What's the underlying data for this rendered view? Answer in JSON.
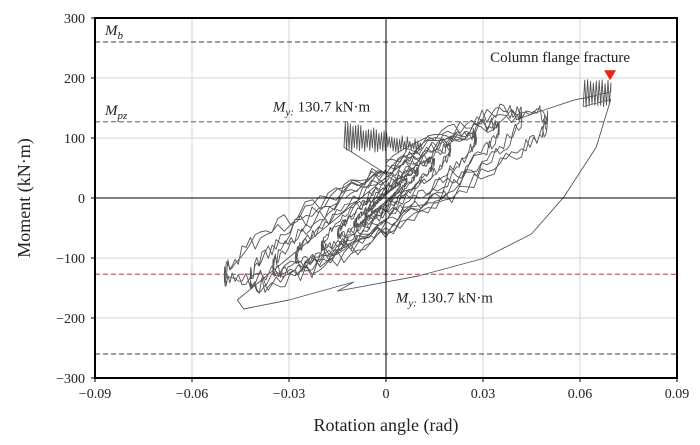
{
  "chart_data": {
    "type": "line",
    "xlabel": "Rotation angle (rad)",
    "ylabel": "Moment (kN·m)",
    "xlim": [
      -0.09,
      0.09
    ],
    "ylim": [
      -300,
      300
    ],
    "x_ticks": [
      -0.09,
      -0.06,
      -0.03,
      0,
      0.03,
      0.06,
      0.09
    ],
    "x_tick_labels": [
      "−0.09",
      "−0.06",
      "−0.03",
      "0",
      "0.03",
      "0.06",
      "0.09"
    ],
    "y_ticks": [
      -300,
      -200,
      -100,
      0,
      100,
      200,
      300
    ],
    "y_tick_labels": [
      "−300",
      "−200",
      "−100",
      "0",
      "100",
      "200",
      "300"
    ],
    "grid": true,
    "reference_lines": [
      {
        "label_main": "M",
        "label_sub": "b",
        "y": 260,
        "color": "#2a3f6b"
      },
      {
        "label_main": "M",
        "label_sub": "b",
        "y": -260,
        "color": "#2a3f6b",
        "hide_label": true
      },
      {
        "label_main": "M",
        "label_sub": "pz",
        "y": 127,
        "color": "#b03a3a"
      },
      {
        "label_main": "M",
        "label_sub": "pz",
        "y": -127,
        "color": "#b03a3a",
        "hide_label": true
      }
    ],
    "annotations": {
      "my_upper": {
        "main": "M",
        "sub": "y:",
        "text": " 130.7 kN·m",
        "x": -0.035,
        "y": 130.7
      },
      "my_lower": {
        "main": "M",
        "sub": "y:",
        "text": " 130.7 kN·m",
        "x": 0.003,
        "y": -130.7
      },
      "fracture": {
        "text": "Column flange fracture",
        "x": 0.0693,
        "y": 193,
        "marker_color": "#e8241c"
      }
    },
    "series": [
      {
        "color": "#555555",
        "loops": [
          {
            "amp_x": 0.0045,
            "amp_y": 22,
            "width": 8
          },
          {
            "amp_x": 0.0065,
            "amp_y": 30,
            "width": 10
          },
          {
            "amp_x": 0.01,
            "amp_y": 45,
            "width": 14
          },
          {
            "amp_x": 0.015,
            "amp_y": 60,
            "width": 22
          },
          {
            "amp_x": 0.02,
            "amp_y": 80,
            "width": 30
          },
          {
            "amp_x": 0.028,
            "amp_y": 100,
            "width": 45
          },
          {
            "amp_x": 0.035,
            "amp_y": 115,
            "width": 55
          },
          {
            "amp_x": 0.042,
            "amp_y": 135,
            "width": 70
          },
          {
            "amp_x": 0.05,
            "amp_y": 130,
            "width": 65
          }
        ],
        "final_upper": [
          [
            0.04,
            145
          ],
          [
            0.048,
            160
          ],
          [
            0.058,
            178
          ],
          [
            0.064,
            185
          ],
          [
            0.068,
            190
          ],
          [
            0.0695,
            192
          ]
        ],
        "final_lower": [
          [
            -0.015,
            -155
          ],
          [
            0.01,
            -130
          ],
          [
            0.03,
            -100
          ],
          [
            0.045,
            -60
          ],
          [
            0.055,
            0
          ],
          [
            0.065,
            80
          ],
          [
            0.0695,
            160
          ]
        ],
        "negative_envelope": [
          [
            -0.046,
            -170
          ],
          [
            -0.044,
            -185
          ],
          [
            -0.03,
            -170
          ],
          [
            -0.01,
            -140
          ]
        ]
      }
    ]
  }
}
